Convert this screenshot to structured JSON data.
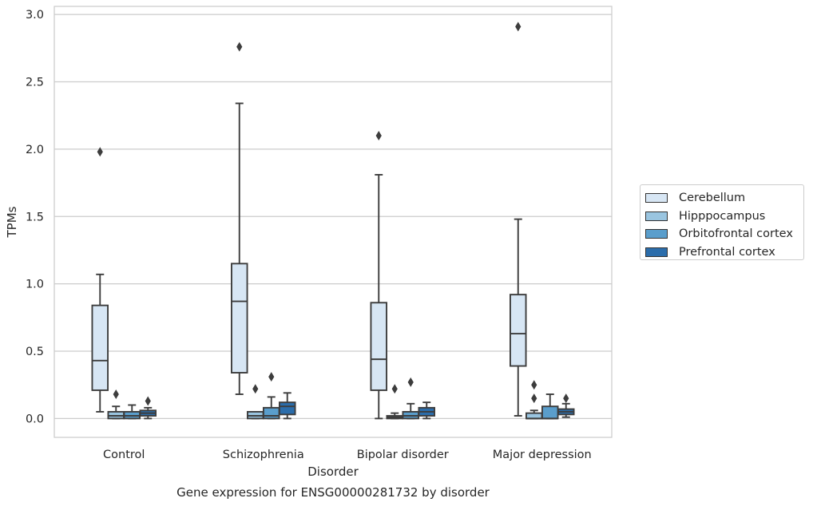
{
  "chart_data": {
    "type": "box",
    "title": "Gene expression for ENSG00000281732 by disorder",
    "xlabel": "Disorder",
    "ylabel": "TPMs",
    "ylim": [
      -0.14,
      3.06
    ],
    "yticks": [
      "0.0",
      "0.5",
      "1.0",
      "1.5",
      "2.0",
      "2.5",
      "3.0"
    ],
    "grid": true,
    "legend_position": "right-center",
    "categories": [
      "Control",
      "Schizophrenia",
      "Bipolar disorder",
      "Major depression"
    ],
    "series": [
      {
        "name": "Cerebellum",
        "color": "#d7e6f4",
        "boxes": [
          {
            "whislo": 0.05,
            "q1": 0.21,
            "med": 0.43,
            "q3": 0.84,
            "whishi": 1.07,
            "fliers": [
              1.98
            ]
          },
          {
            "whislo": 0.18,
            "q1": 0.34,
            "med": 0.87,
            "q3": 1.15,
            "whishi": 2.34,
            "fliers": [
              2.76
            ]
          },
          {
            "whislo": 0.0,
            "q1": 0.21,
            "med": 0.44,
            "q3": 0.86,
            "whishi": 1.81,
            "fliers": [
              2.1
            ]
          },
          {
            "whislo": 0.02,
            "q1": 0.39,
            "med": 0.63,
            "q3": 0.92,
            "whishi": 1.48,
            "fliers": [
              2.91
            ]
          }
        ]
      },
      {
        "name": "Hipppocampus",
        "color": "#9ac5e0",
        "boxes": [
          {
            "whislo": 0.0,
            "q1": 0.0,
            "med": 0.02,
            "q3": 0.05,
            "whishi": 0.09,
            "fliers": [
              0.18
            ]
          },
          {
            "whislo": 0.0,
            "q1": 0.0,
            "med": 0.02,
            "q3": 0.05,
            "whishi": 0.05,
            "fliers": [
              0.22
            ]
          },
          {
            "whislo": 0.0,
            "q1": 0.0,
            "med": 0.01,
            "q3": 0.02,
            "whishi": 0.04,
            "fliers": [
              0.22
            ]
          },
          {
            "whislo": 0.0,
            "q1": 0.0,
            "med": 0.0,
            "q3": 0.04,
            "whishi": 0.06,
            "fliers": [
              0.15,
              0.25
            ]
          }
        ]
      },
      {
        "name": "Orbitofrontal cortex",
        "color": "#5a9ecc",
        "boxes": [
          {
            "whislo": 0.0,
            "q1": 0.0,
            "med": 0.02,
            "q3": 0.05,
            "whishi": 0.1,
            "fliers": []
          },
          {
            "whislo": 0.0,
            "q1": 0.0,
            "med": 0.02,
            "q3": 0.08,
            "whishi": 0.16,
            "fliers": [
              0.31
            ]
          },
          {
            "whislo": 0.0,
            "q1": 0.0,
            "med": 0.02,
            "q3": 0.05,
            "whishi": 0.11,
            "fliers": [
              0.27
            ]
          },
          {
            "whislo": 0.0,
            "q1": 0.0,
            "med": 0.0,
            "q3": 0.09,
            "whishi": 0.18,
            "fliers": []
          }
        ]
      },
      {
        "name": "Prefrontal cortex",
        "color": "#2b6dab",
        "boxes": [
          {
            "whislo": 0.0,
            "q1": 0.02,
            "med": 0.04,
            "q3": 0.06,
            "whishi": 0.08,
            "fliers": [
              0.13
            ]
          },
          {
            "whislo": 0.0,
            "q1": 0.03,
            "med": 0.09,
            "q3": 0.12,
            "whishi": 0.19,
            "fliers": []
          },
          {
            "whislo": 0.0,
            "q1": 0.02,
            "med": 0.05,
            "q3": 0.08,
            "whishi": 0.12,
            "fliers": []
          },
          {
            "whislo": 0.01,
            "q1": 0.03,
            "med": 0.05,
            "q3": 0.07,
            "whishi": 0.11,
            "fliers": [
              0.15
            ]
          }
        ]
      }
    ]
  }
}
